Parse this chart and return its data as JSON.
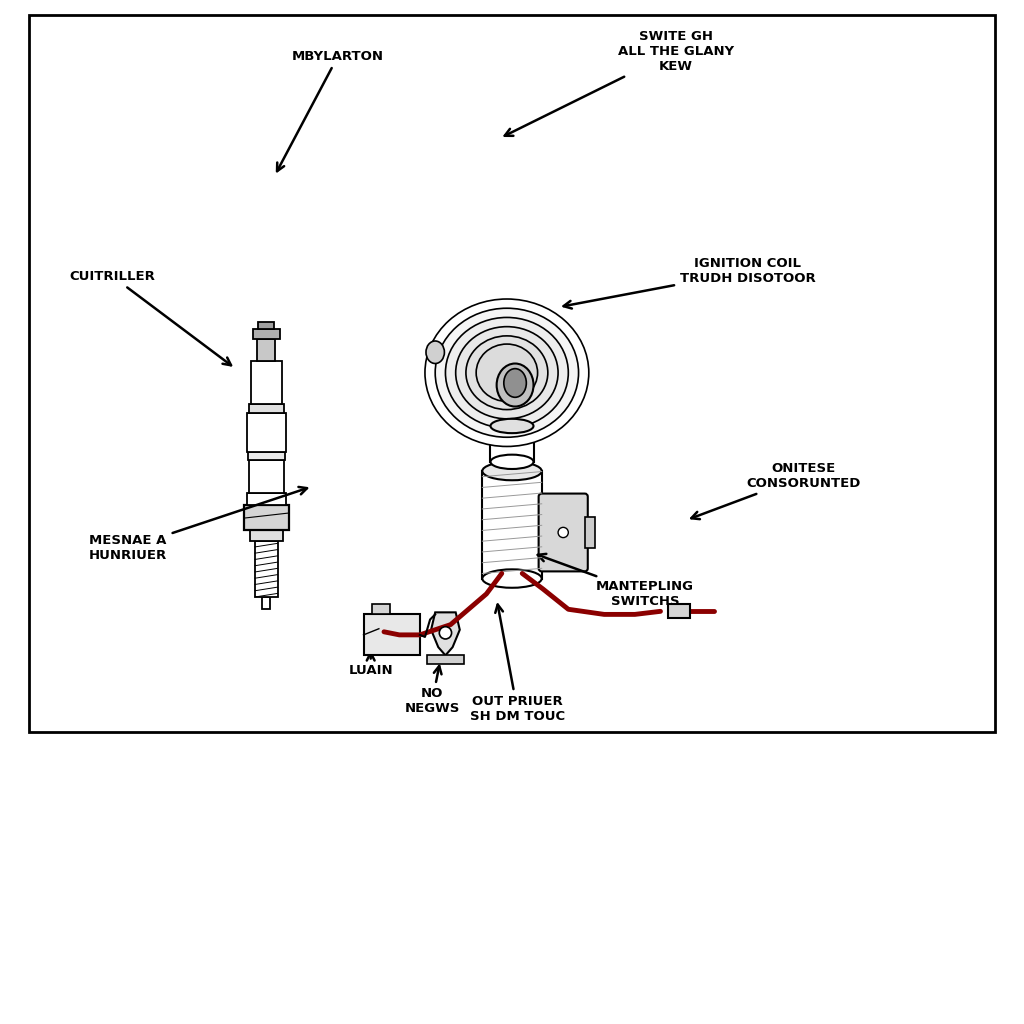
{
  "bg_color": "#ffffff",
  "line_color": "#000000",
  "wire_color": "#8B0000",
  "text_color": "#000000",
  "labels": {
    "mbylarton": "MBYLARTON",
    "swite_gh": "SWITE GH\nALL THE GLANY\nKEW",
    "cuitriller": "CUITRILLER",
    "ignition_coil": "IGNITION COIL\nTRUDH DISOTOOR",
    "onitese": "ONITESE\nCONSORUNTED",
    "mesnae": "MESNAE A\nHUNRIUER",
    "luain": "LUAIN",
    "no_negws": "NO\nNEGWS",
    "out_priuer": "OUT PRIUER\nSH DM TOUC",
    "mantepling": "MANTEPLING\nSWITCHS"
  },
  "font_size": 9.5,
  "xlim": [
    0,
    10
  ],
  "ylim": [
    0,
    10
  ]
}
